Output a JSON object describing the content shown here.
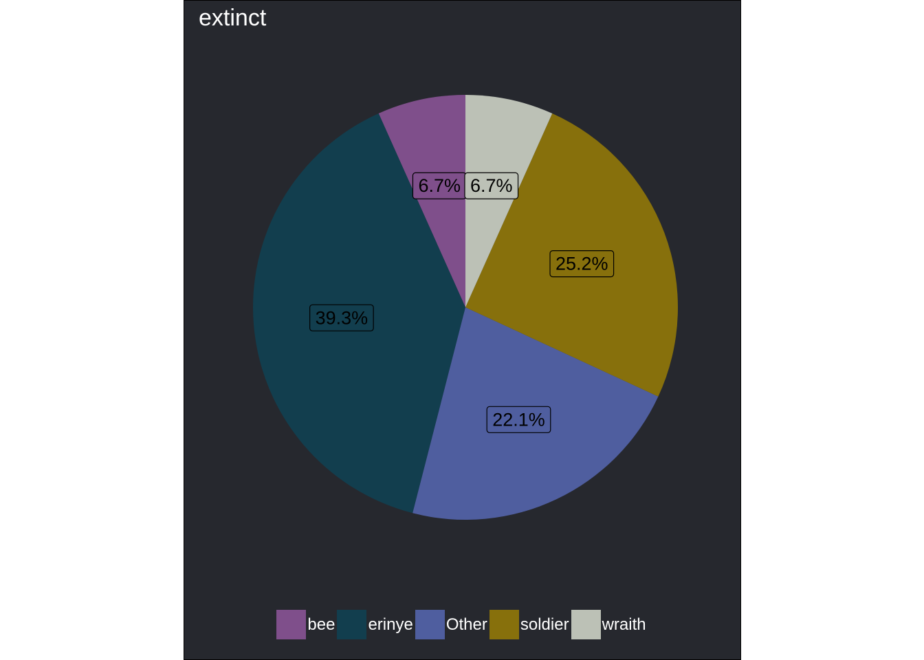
{
  "chart_data": {
    "type": "pie",
    "title": "extinct",
    "start": "12 o'clock",
    "direction": "counter-clockwise",
    "slices": [
      {
        "name": "bee",
        "value": 6.7,
        "label": "6.7%",
        "color": "#7f4f8b"
      },
      {
        "name": "erinye",
        "value": 39.3,
        "label": "39.3%",
        "color": "#123e4e"
      },
      {
        "name": "Other",
        "value": 22.1,
        "label": "22.1%",
        "color": "#4f5e9f"
      },
      {
        "name": "soldier",
        "value": 25.2,
        "label": "25.2%",
        "color": "#87700c"
      },
      {
        "name": "wraith",
        "value": 6.7,
        "label": "6.7%",
        "color": "#bcc1b6"
      }
    ],
    "legend_position": "bottom",
    "background": "#26282e"
  }
}
